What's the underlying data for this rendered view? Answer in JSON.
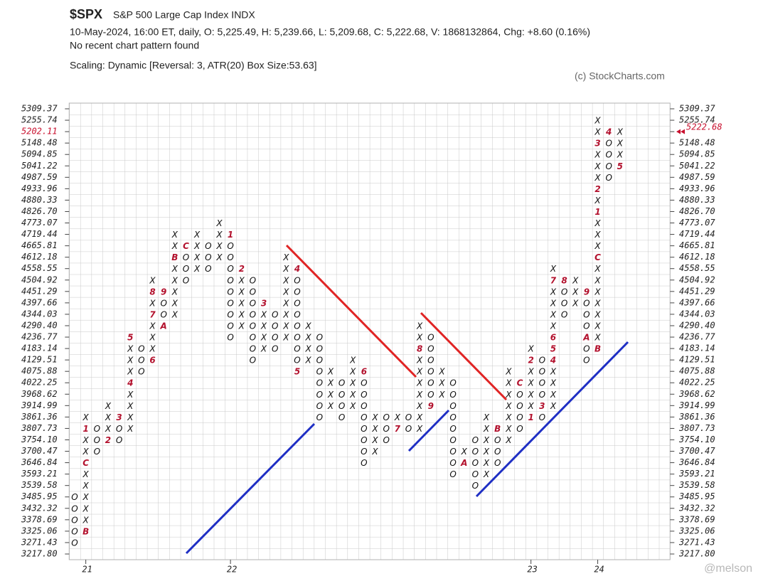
{
  "header": {
    "symbol": "$SPX",
    "name": "S&P 500 Large Cap Index  INDX",
    "info": "10-May-2024, 16:00 ET, daily, O: 5,225.49, H: 5,239.66, L: 5,209.68, C: 5,222.68, V: 1868132864, Chg: +8.60 (0.16%)",
    "pattern": "No recent chart pattern found",
    "scaling": "Scaling: Dynamic [Reversal: 3, ATR(20) Box Size:53.63]",
    "copyright": "(c) StockCharts.com"
  },
  "watermark": "@melson",
  "chart_data": {
    "type": "pnf",
    "ylim": [
      3217.8,
      5309.37
    ],
    "yticks": [
      5309.37,
      5255.74,
      5202.11,
      5148.48,
      5094.85,
      5041.22,
      4987.59,
      4933.96,
      4880.33,
      {
        "value": 4826.7,
        "label": "4826.70"
      },
      4773.07,
      4719.44,
      4665.81,
      4612.18,
      4558.55,
      4504.92,
      4451.29,
      4397.66,
      4344.03,
      {
        "value": 4290.4,
        "label": "4290.40"
      },
      4236.77,
      4183.14,
      4129.51,
      4075.88,
      4022.25,
      3968.62,
      3914.99,
      3861.36,
      3807.73,
      {
        "value": 3754.1,
        "label": "3754.10"
      },
      3700.47,
      3646.84,
      3593.21,
      3539.58,
      3485.95,
      3432.32,
      3378.69,
      3325.06,
      3271.43,
      {
        "value": 3217.8,
        "label": "3217.80"
      }
    ],
    "last_box": 5202.11,
    "last_price": 5222.68,
    "grid": true,
    "glyph_color": "#111111",
    "marker_color": "#b3122e",
    "highlight_color": "#c8102e",
    "columns": [
      {
        "kind": "O",
        "high": 3485.95,
        "low": 3271.43
      },
      {
        "kind": "X",
        "high": 3861.36,
        "low": 3325.06,
        "year": "21",
        "markers": [
          {
            "label": "B",
            "at": 3325.06
          },
          {
            "label": "C",
            "at": 3646.84
          },
          {
            "label": "1",
            "at": 3807.73
          }
        ]
      },
      {
        "kind": "O",
        "high": 3807.73,
        "low": 3700.47
      },
      {
        "kind": "X",
        "high": 3914.99,
        "low": 3754.1,
        "markers": [
          {
            "label": "2",
            "at": 3754.1
          }
        ]
      },
      {
        "kind": "O",
        "high": 3861.36,
        "low": 3754.1,
        "markers": [
          {
            "label": "3",
            "at": 3861.36
          }
        ]
      },
      {
        "kind": "X",
        "high": 4236.77,
        "low": 3807.73,
        "markers": [
          {
            "label": "4",
            "at": 4022.25
          },
          {
            "label": "5",
            "at": 4236.77
          }
        ]
      },
      {
        "kind": "O",
        "high": 4183.14,
        "low": 4075.88
      },
      {
        "kind": "X",
        "high": 4504.92,
        "low": 4129.51,
        "markers": [
          {
            "label": "6",
            "at": 4129.51
          },
          {
            "label": "7",
            "at": 4344.03
          },
          {
            "label": "8",
            "at": 4451.29
          }
        ]
      },
      {
        "kind": "O",
        "high": 4451.29,
        "low": 4290.4,
        "markers": [
          {
            "label": "9",
            "at": 4451.29
          },
          {
            "label": "A",
            "at": 4290.4
          }
        ]
      },
      {
        "kind": "X",
        "high": 4719.44,
        "low": 4344.03,
        "markers": [
          {
            "label": "B",
            "at": 4612.18
          }
        ]
      },
      {
        "kind": "O",
        "high": 4665.81,
        "low": 4504.92,
        "markers": [
          {
            "label": "C",
            "at": 4665.81
          }
        ]
      },
      {
        "kind": "X",
        "high": 4719.44,
        "low": 4558.55
      },
      {
        "kind": "O",
        "high": 4665.81,
        "low": 4558.55
      },
      {
        "kind": "X",
        "high": 4773.07,
        "low": 4612.18
      },
      {
        "kind": "O",
        "high": 4719.44,
        "low": 4236.77,
        "year": "22",
        "markers": [
          {
            "label": "1",
            "at": 4719.44
          }
        ]
      },
      {
        "kind": "X",
        "high": 4558.55,
        "low": 4290.4,
        "markers": [
          {
            "label": "2",
            "at": 4558.55
          }
        ]
      },
      {
        "kind": "O",
        "high": 4504.92,
        "low": 4129.51
      },
      {
        "kind": "X",
        "high": 4397.66,
        "low": 4183.14,
        "markers": [
          {
            "label": "3",
            "at": 4397.66
          }
        ]
      },
      {
        "kind": "O",
        "high": 4344.03,
        "low": 4183.14
      },
      {
        "kind": "X",
        "high": 4612.18,
        "low": 4236.77
      },
      {
        "kind": "O",
        "high": 4558.55,
        "low": 4075.88,
        "markers": [
          {
            "label": "4",
            "at": 4558.55
          },
          {
            "label": "5",
            "at": 4075.88
          }
        ]
      },
      {
        "kind": "X",
        "high": 4290.4,
        "low": 4129.51
      },
      {
        "kind": "O",
        "high": 4236.77,
        "low": 3861.36
      },
      {
        "kind": "X",
        "high": 4075.88,
        "low": 3914.99
      },
      {
        "kind": "O",
        "high": 4022.25,
        "low": 3861.36
      },
      {
        "kind": "X",
        "high": 4129.51,
        "low": 3914.99
      },
      {
        "kind": "O",
        "high": 4075.88,
        "low": 3646.84,
        "markers": [
          {
            "label": "6",
            "at": 4075.88
          }
        ]
      },
      {
        "kind": "X",
        "high": 3861.36,
        "low": 3700.47
      },
      {
        "kind": "O",
        "high": 3861.36,
        "low": 3754.1
      },
      {
        "kind": "X",
        "high": 3861.36,
        "low": 3807.73,
        "markers": [
          {
            "label": "7",
            "at": 3807.73
          }
        ]
      },
      {
        "kind": "O",
        "high": 3861.36,
        "low": 3807.73
      },
      {
        "kind": "X",
        "high": 4290.4,
        "low": 3807.73,
        "markers": [
          {
            "label": "8",
            "at": 4183.14
          }
        ]
      },
      {
        "kind": "O",
        "high": 4236.77,
        "low": 3914.99,
        "markers": [
          {
            "label": "9",
            "at": 3914.99
          }
        ]
      },
      {
        "kind": "X",
        "high": 4075.88,
        "low": 3968.62
      },
      {
        "kind": "O",
        "high": 4022.25,
        "low": 3593.21
      },
      {
        "kind": "X",
        "high": 3700.47,
        "low": 3646.84,
        "markers": [
          {
            "label": "A",
            "at": 3646.84
          }
        ]
      },
      {
        "kind": "O",
        "high": 3754.1,
        "low": 3539.58
      },
      {
        "kind": "X",
        "high": 3861.36,
        "low": 3593.21
      },
      {
        "kind": "O",
        "high": 3807.73,
        "low": 3646.84,
        "markers": [
          {
            "label": "B",
            "at": 3807.73
          }
        ]
      },
      {
        "kind": "X",
        "high": 4075.88,
        "low": 3754.1
      },
      {
        "kind": "O",
        "high": 4022.25,
        "low": 3807.73,
        "markers": [
          {
            "label": "C",
            "at": 4022.25
          }
        ]
      },
      {
        "kind": "X",
        "high": 4183.14,
        "low": 3861.36,
        "year": "23",
        "markers": [
          {
            "label": "1",
            "at": 3861.36
          },
          {
            "label": "2",
            "at": 4129.51
          }
        ]
      },
      {
        "kind": "O",
        "high": 4129.51,
        "low": 3861.36,
        "markers": [
          {
            "label": "3",
            "at": 3914.99
          }
        ]
      },
      {
        "kind": "X",
        "high": 4558.55,
        "low": 3914.99,
        "markers": [
          {
            "label": "4",
            "at": 4129.51
          },
          {
            "label": "5",
            "at": 4183.14
          },
          {
            "label": "6",
            "at": 4236.77
          },
          {
            "label": "7",
            "at": 4504.92
          }
        ]
      },
      {
        "kind": "O",
        "high": 4504.92,
        "low": 4344.03,
        "markers": [
          {
            "label": "8",
            "at": 4504.92
          }
        ]
      },
      {
        "kind": "X",
        "high": 4504.92,
        "low": 4397.66
      },
      {
        "kind": "O",
        "high": 4451.29,
        "low": 4129.51,
        "markers": [
          {
            "label": "9",
            "at": 4451.29
          },
          {
            "label": "A",
            "at": 4236.77
          }
        ]
      },
      {
        "kind": "X",
        "high": 5255.74,
        "low": 4183.14,
        "year": "24",
        "markers": [
          {
            "label": "B",
            "at": 4183.14
          },
          {
            "label": "C",
            "at": 4612.18
          },
          {
            "label": "1",
            "at": 4826.7
          },
          {
            "label": "2",
            "at": 4933.96
          },
          {
            "label": "3",
            "at": 5148.48
          }
        ]
      },
      {
        "kind": "O",
        "high": 5202.11,
        "low": 4987.59,
        "markers": [
          {
            "label": "4",
            "at": 5202.11
          }
        ]
      },
      {
        "kind": "X",
        "high": 5202.11,
        "low": 5041.22,
        "markers": [
          {
            "label": "5",
            "at": 5041.22
          }
        ]
      }
    ]
  }
}
